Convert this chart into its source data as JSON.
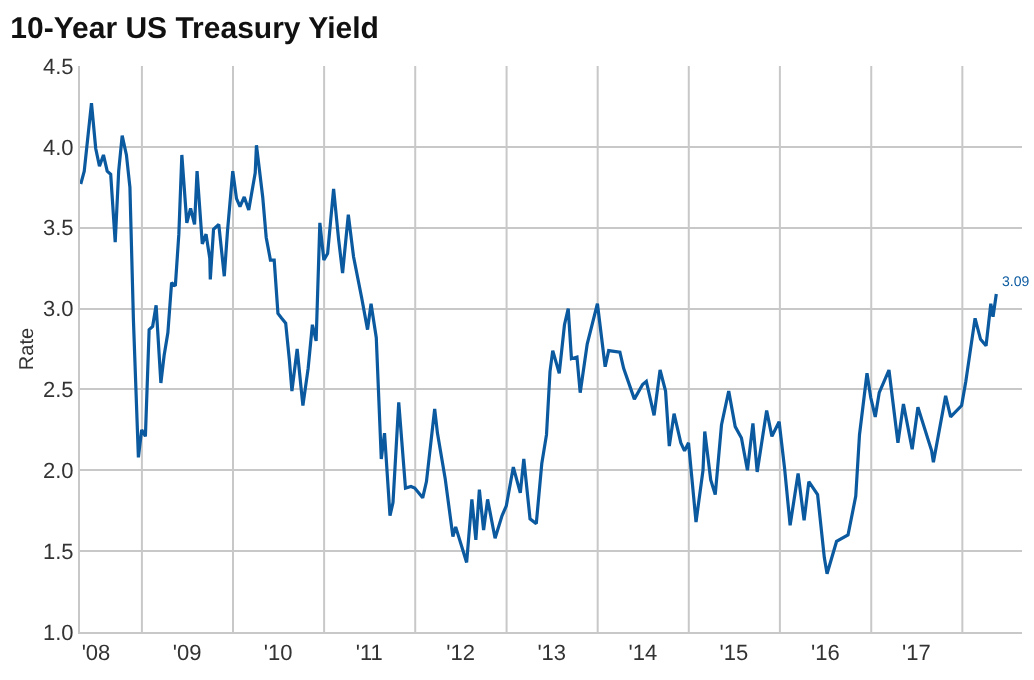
{
  "chart_data": {
    "type": "line",
    "title": "10-Year US Treasury Yield",
    "ylabel": "Rate",
    "x": [
      "2008-05-01",
      "2008-05-15",
      "2008-06-13",
      "2008-06-30",
      "2008-07-15",
      "2008-07-31",
      "2008-08-15",
      "2008-08-29",
      "2008-09-16",
      "2008-09-30",
      "2008-10-14",
      "2008-10-31",
      "2008-11-14",
      "2008-11-28",
      "2008-12-18",
      "2008-12-31",
      "2009-01-15",
      "2009-01-30",
      "2009-02-13",
      "2009-02-27",
      "2009-03-18",
      "2009-03-31",
      "2009-04-15",
      "2009-04-30",
      "2009-05-15",
      "2009-05-29",
      "2009-06-10",
      "2009-06-30",
      "2009-07-15",
      "2009-07-31",
      "2009-08-10",
      "2009-08-31",
      "2009-09-15",
      "2009-09-30",
      "2009-10-02",
      "2009-10-15",
      "2009-11-05",
      "2009-11-27",
      "2009-12-10",
      "2009-12-31",
      "2010-01-15",
      "2010-01-29",
      "2010-02-15",
      "2010-03-05",
      "2010-03-31",
      "2010-04-05",
      "2010-04-30",
      "2010-05-14",
      "2010-05-31",
      "2010-06-15",
      "2010-06-30",
      "2010-07-15",
      "2010-07-31",
      "2010-08-15",
      "2010-08-25",
      "2010-09-15",
      "2010-09-30",
      "2010-10-08",
      "2010-10-29",
      "2010-11-15",
      "2010-11-30",
      "2010-12-15",
      "2010-12-31",
      "2011-01-15",
      "2011-02-08",
      "2011-02-28",
      "2011-03-16",
      "2011-04-08",
      "2011-04-29",
      "2011-05-31",
      "2011-06-24",
      "2011-07-08",
      "2011-07-29",
      "2011-08-18",
      "2011-08-31",
      "2011-09-22",
      "2011-10-04",
      "2011-10-27",
      "2011-11-23",
      "2011-12-15",
      "2011-12-30",
      "2012-01-31",
      "2012-02-15",
      "2012-03-19",
      "2012-03-30",
      "2012-04-30",
      "2012-05-31",
      "2012-06-11",
      "2012-07-25",
      "2012-08-15",
      "2012-08-31",
      "2012-09-14",
      "2012-10-01",
      "2012-10-17",
      "2012-11-16",
      "2012-12-14",
      "2012-12-31",
      "2013-01-28",
      "2013-02-25",
      "2013-03-11",
      "2013-04-05",
      "2013-04-30",
      "2013-05-22",
      "2013-06-10",
      "2013-06-24",
      "2013-07-05",
      "2013-07-31",
      "2013-08-21",
      "2013-09-05",
      "2013-09-18",
      "2013-10-10",
      "2013-10-23",
      "2013-11-20",
      "2013-12-31",
      "2014-01-31",
      "2014-02-14",
      "2014-03-31",
      "2014-04-15",
      "2014-05-28",
      "2014-06-30",
      "2014-07-15",
      "2014-08-15",
      "2014-09-08",
      "2014-09-30",
      "2014-10-15",
      "2014-11-03",
      "2014-11-30",
      "2014-12-15",
      "2014-12-31",
      "2015-01-30",
      "2015-02-27",
      "2015-03-06",
      "2015-03-30",
      "2015-04-17",
      "2015-05-12",
      "2015-06-10",
      "2015-07-06",
      "2015-07-31",
      "2015-08-24",
      "2015-09-15",
      "2015-10-02",
      "2015-11-09",
      "2015-11-30",
      "2015-12-29",
      "2016-01-20",
      "2016-02-11",
      "2016-03-14",
      "2016-04-07",
      "2016-04-26",
      "2016-05-31",
      "2016-06-27",
      "2016-07-08",
      "2016-08-15",
      "2016-09-30",
      "2016-10-31",
      "2016-11-15",
      "2016-12-15",
      "2016-12-30",
      "2017-01-17",
      "2017-02-02",
      "2017-03-13",
      "2017-04-18",
      "2017-05-10",
      "2017-06-14",
      "2017-07-07",
      "2017-08-31",
      "2017-09-07",
      "2017-10-26",
      "2017-11-15",
      "2017-12-29",
      "2018-01-15",
      "2018-01-31",
      "2018-02-21",
      "2018-03-15",
      "2018-04-06",
      "2018-04-25",
      "2018-05-04",
      "2018-05-17"
    ],
    "series": [
      {
        "color": "#0b5aa0",
        "values": [
          3.77,
          3.85,
          4.27,
          3.99,
          3.88,
          3.95,
          3.85,
          3.83,
          3.41,
          3.85,
          4.07,
          3.95,
          3.75,
          2.93,
          2.08,
          2.25,
          2.21,
          2.87,
          2.89,
          3.02,
          2.54,
          2.71,
          2.85,
          3.16,
          3.14,
          3.46,
          3.95,
          3.53,
          3.62,
          3.52,
          3.85,
          3.4,
          3.46,
          3.31,
          3.18,
          3.49,
          3.52,
          3.2,
          3.48,
          3.85,
          3.68,
          3.63,
          3.69,
          3.61,
          3.84,
          4.01,
          3.69,
          3.44,
          3.3,
          3.3,
          2.97,
          2.94,
          2.91,
          2.68,
          2.49,
          2.75,
          2.52,
          2.4,
          2.63,
          2.9,
          2.8,
          3.53,
          3.3,
          3.34,
          3.74,
          3.43,
          3.22,
          3.58,
          3.32,
          3.07,
          2.87,
          3.03,
          2.82,
          2.07,
          2.23,
          1.72,
          1.8,
          2.42,
          1.89,
          1.9,
          1.89,
          1.83,
          1.93,
          2.38,
          2.23,
          1.95,
          1.59,
          1.65,
          1.43,
          1.82,
          1.57,
          1.88,
          1.63,
          1.82,
          1.58,
          1.72,
          1.78,
          2.02,
          1.86,
          2.07,
          1.7,
          1.67,
          2.04,
          2.22,
          2.61,
          2.74,
          2.6,
          2.9,
          3.0,
          2.69,
          2.7,
          2.48,
          2.78,
          3.03,
          2.64,
          2.74,
          2.73,
          2.63,
          2.44,
          2.53,
          2.55,
          2.34,
          2.62,
          2.49,
          2.15,
          2.35,
          2.17,
          2.12,
          2.17,
          1.68,
          2.0,
          2.24,
          1.94,
          1.85,
          2.28,
          2.49,
          2.27,
          2.2,
          2.0,
          2.29,
          1.99,
          2.37,
          2.21,
          2.3,
          2.01,
          1.66,
          1.98,
          1.69,
          1.93,
          1.85,
          1.46,
          1.36,
          1.56,
          1.6,
          1.84,
          2.22,
          2.6,
          2.45,
          2.33,
          2.48,
          2.62,
          2.17,
          2.41,
          2.13,
          2.39,
          2.12,
          2.05,
          2.46,
          2.33,
          2.4,
          2.55,
          2.72,
          2.94,
          2.81,
          2.77,
          3.03,
          2.95,
          3.09
        ]
      }
    ],
    "annotations": [
      {
        "text": "3.09",
        "x": "2018-05-17",
        "y": 3.09
      }
    ],
    "xlim": [
      "2008-04-28",
      "2018-08-28"
    ],
    "xticks": [
      {
        "value": "2008-07-01",
        "label": "'08"
      },
      {
        "value": "2009-07-01",
        "label": "'09"
      },
      {
        "value": "2010-07-01",
        "label": "'10"
      },
      {
        "value": "2011-07-01",
        "label": "'11"
      },
      {
        "value": "2012-07-01",
        "label": "'12"
      },
      {
        "value": "2013-07-01",
        "label": "'13"
      },
      {
        "value": "2014-07-01",
        "label": "'14"
      },
      {
        "value": "2015-07-01",
        "label": "'15"
      },
      {
        "value": "2016-07-01",
        "label": "'16"
      },
      {
        "value": "2017-07-01",
        "label": "'17"
      },
      {
        "value": "2009-01-01",
        "label": null
      },
      {
        "value": "2010-01-01",
        "label": null
      },
      {
        "value": "2011-01-01",
        "label": null
      },
      {
        "value": "2012-01-01",
        "label": null
      },
      {
        "value": "2013-01-01",
        "label": null
      },
      {
        "value": "2014-01-01",
        "label": null
      },
      {
        "value": "2015-01-01",
        "label": null
      },
      {
        "value": "2016-01-01",
        "label": null
      },
      {
        "value": "2017-01-01",
        "label": null
      },
      {
        "value": "2018-01-01",
        "label": null
      }
    ],
    "ylim": [
      1.0,
      4.5
    ],
    "yticks": [
      {
        "value": 1,
        "label": "1.0"
      },
      {
        "value": 1.5,
        "label": "1.5"
      },
      {
        "value": 2,
        "label": "2.0"
      },
      {
        "value": 2.5,
        "label": "2.5"
      },
      {
        "value": 3,
        "label": "3.0"
      },
      {
        "value": 3.5,
        "label": "3.5"
      },
      {
        "value": 4,
        "label": "4.0"
      },
      {
        "value": 4.5,
        "label": "4.5"
      }
    ],
    "grid": true,
    "marker": "none",
    "line_style": "solid"
  }
}
